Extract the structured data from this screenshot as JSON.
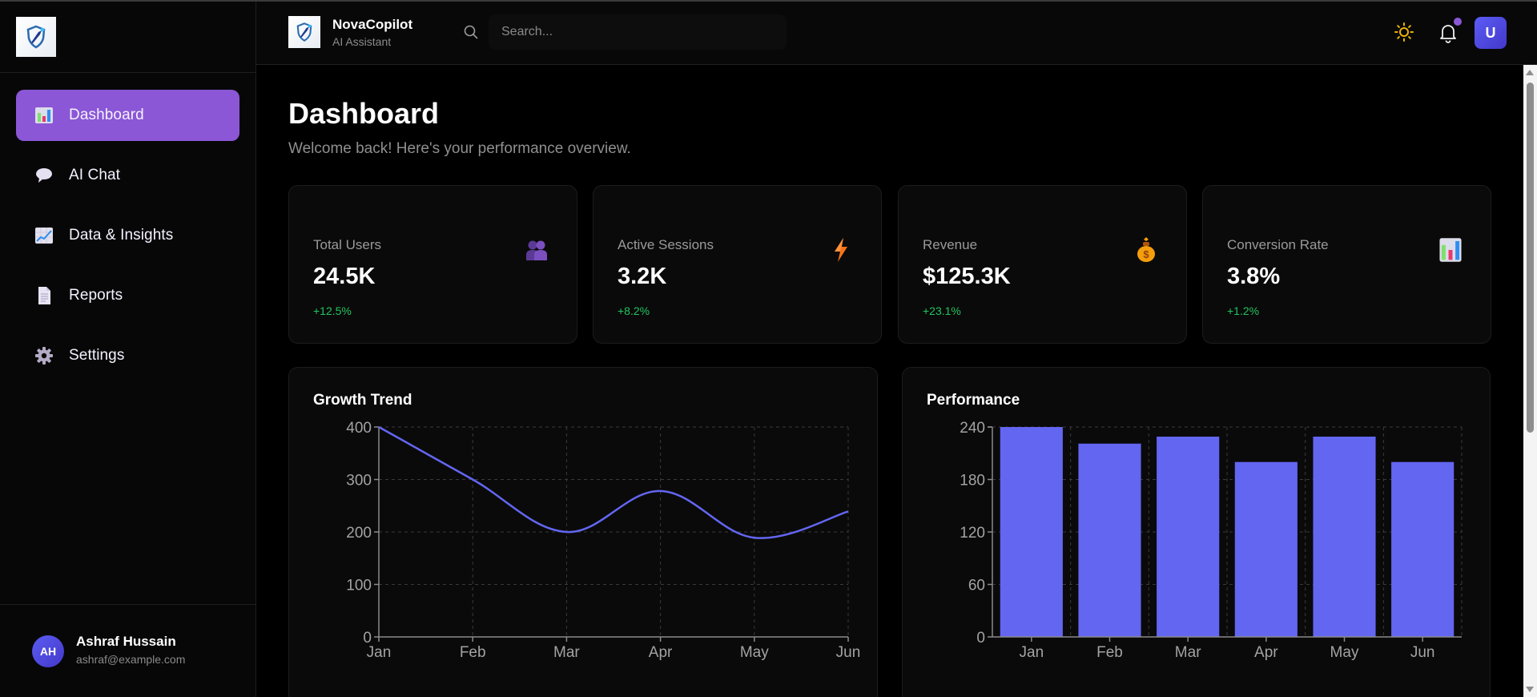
{
  "app": {
    "brand_name": "NovaCopilot",
    "brand_subtitle": "AI Assistant",
    "accent_color": "#8b57d6",
    "chart_color": "#6366f1",
    "positive_color": "#22c55e"
  },
  "sidebar": {
    "items": [
      {
        "label": "Dashboard",
        "icon": "bar-chart-icon",
        "active": true
      },
      {
        "label": "AI Chat",
        "icon": "speech-bubble-icon",
        "active": false
      },
      {
        "label": "Data & Insights",
        "icon": "trending-chart-icon",
        "active": false
      },
      {
        "label": "Reports",
        "icon": "document-icon",
        "active": false
      },
      {
        "label": "Settings",
        "icon": "gear-icon",
        "active": false
      }
    ],
    "user": {
      "initials": "AH",
      "name": "Ashraf Hussain",
      "email": "ashraf@example.com"
    }
  },
  "header": {
    "search_placeholder": "Search...",
    "search_value": "",
    "theme_icon": "sun-icon",
    "notification_icon": "bell-icon",
    "has_unread_notifications": true,
    "avatar_initial": "U"
  },
  "page": {
    "title": "Dashboard",
    "subtitle": "Welcome back! Here's your performance overview."
  },
  "stats": [
    {
      "label": "Total Users",
      "value": "24.5K",
      "delta": "+12.5%",
      "icon": "users-icon"
    },
    {
      "label": "Active Sessions",
      "value": "3.2K",
      "delta": "+8.2%",
      "icon": "lightning-icon"
    },
    {
      "label": "Revenue",
      "value": "$125.3K",
      "delta": "+23.1%",
      "icon": "money-bag-icon"
    },
    {
      "label": "Conversion Rate",
      "value": "3.8%",
      "delta": "+1.2%",
      "icon": "bar-chart-icon"
    }
  ],
  "chart_data": [
    {
      "type": "line",
      "title": "Growth Trend",
      "categories": [
        "Jan",
        "Feb",
        "Mar",
        "Apr",
        "May",
        "Jun"
      ],
      "series": [
        {
          "name": "Growth",
          "values": [
            400,
            300,
            200,
            278,
            189,
            239
          ]
        }
      ],
      "yticks": [
        0,
        100,
        200,
        300,
        400
      ],
      "ylim": [
        0,
        400
      ],
      "xlabel": "",
      "ylabel": "",
      "grid": true,
      "smooth": true,
      "legend": "none"
    },
    {
      "type": "bar",
      "title": "Performance",
      "categories": [
        "Jan",
        "Feb",
        "Mar",
        "Apr",
        "May",
        "Jun"
      ],
      "values": [
        240,
        221,
        229,
        200,
        229,
        200
      ],
      "yticks": [
        0,
        60,
        120,
        180,
        240
      ],
      "ylim": [
        0,
        240
      ],
      "xlabel": "",
      "ylabel": "",
      "grid": true,
      "legend": "none"
    }
  ]
}
